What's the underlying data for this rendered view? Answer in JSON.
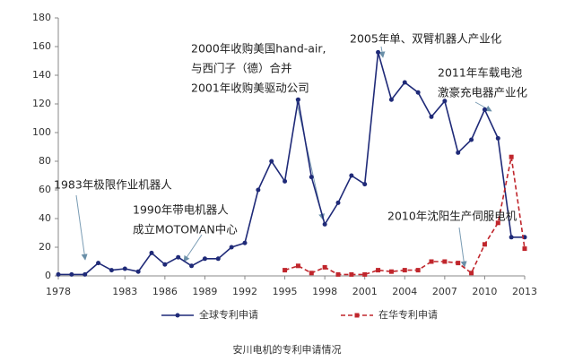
{
  "chart_data": {
    "type": "line",
    "caption": "安川电机的专利申请情况",
    "xlim": [
      1978,
      2013
    ],
    "ylim": [
      0,
      180
    ],
    "xticks": [
      1978,
      1983,
      1986,
      1989,
      1992,
      1995,
      1998,
      2001,
      2004,
      2007,
      2010,
      2013
    ],
    "yticks": [
      0,
      20,
      40,
      60,
      80,
      100,
      120,
      140,
      160,
      180
    ],
    "legend": "bottom",
    "series": [
      {
        "name": "全球专利申请",
        "color": "#1f2a78",
        "marker": "circle",
        "dashed": false,
        "x": [
          1978,
          1979,
          1980,
          1981,
          1982,
          1983,
          1984,
          1985,
          1986,
          1987,
          1988,
          1989,
          1990,
          1991,
          1992,
          1993,
          1994,
          1995,
          1996,
          1997,
          1998,
          1999,
          2000,
          2001,
          2002,
          2003,
          2004,
          2005,
          2006,
          2007,
          2008,
          2009,
          2010,
          2011,
          2012,
          2013
        ],
        "values": [
          1,
          1,
          1,
          9,
          4,
          5,
          3,
          16,
          8,
          13,
          7,
          12,
          12,
          20,
          23,
          60,
          80,
          66,
          123,
          69,
          36,
          51,
          70,
          64,
          156,
          123,
          135,
          128,
          111,
          122,
          86,
          95,
          116,
          96,
          27,
          27
        ]
      },
      {
        "name": "在华专利申请",
        "color": "#c0262c",
        "marker": "square",
        "dashed": true,
        "x": [
          1995,
          1996,
          1997,
          1998,
          1999,
          2000,
          2001,
          2002,
          2003,
          2004,
          2005,
          2006,
          2007,
          2008,
          2009,
          2010,
          2011,
          2012,
          2013
        ],
        "values": [
          4,
          7,
          2,
          6,
          1,
          1,
          1,
          4,
          3,
          4,
          4,
          10,
          10,
          9,
          2,
          22,
          37,
          83,
          19
        ]
      }
    ],
    "annotations": [
      {
        "lines": [
          "1983年极限作业机器人"
        ]
      },
      {
        "lines": [
          "1990年带电机器人",
          "成立MOTOMAN中心"
        ]
      },
      {
        "lines": [
          "2000年收购美国hand-air,",
          "与西门子（德）合并",
          "2001年收购美驱动公司"
        ]
      },
      {
        "lines": [
          "2005年单、双臂机器人产业化"
        ]
      },
      {
        "lines": [
          "2011年车载电池",
          "激豪充电器产业化"
        ]
      },
      {
        "lines": [
          "2010年沈阳生产伺服电机"
        ]
      }
    ]
  }
}
